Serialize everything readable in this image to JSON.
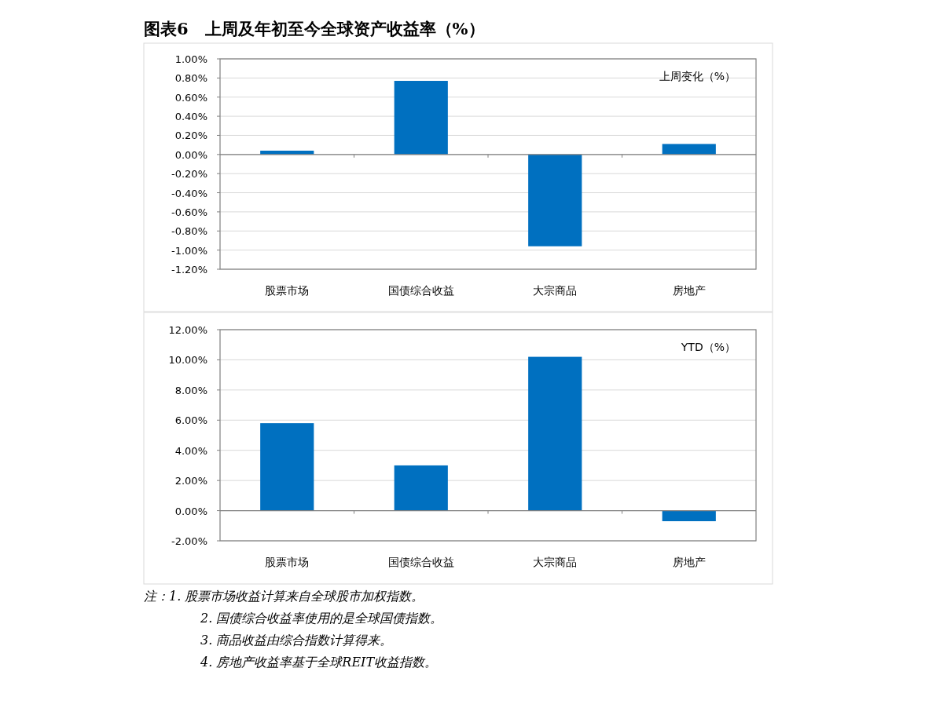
{
  "chart_data": [
    {
      "type": "bar",
      "title": "图表6　上周及年初至今全球资产收益率（%）",
      "categories": [
        "股票市场",
        "国债综合收益",
        "大宗商品",
        "房地产"
      ],
      "values": [
        0.04,
        0.77,
        -0.96,
        0.11
      ],
      "color": "#0070c0",
      "ylim": [
        -1.2,
        1.0
      ],
      "yticks": [
        {
          "value": -1.2,
          "label": "-1.20%"
        },
        {
          "value": -1.0,
          "label": "-1.00%"
        },
        {
          "value": -0.8,
          "label": "-0.80%"
        },
        {
          "value": -0.6,
          "label": "-0.60%"
        },
        {
          "value": -0.4,
          "label": "-0.40%"
        },
        {
          "value": -0.2,
          "label": "-0.20%"
        },
        {
          "value": 0,
          "label": "0.00%"
        },
        {
          "value": 0.2,
          "label": "0.20%"
        },
        {
          "value": 0.4,
          "label": "0.40%"
        },
        {
          "value": 0.6,
          "label": "0.60%"
        },
        {
          "value": 0.8,
          "label": "0.80%"
        },
        {
          "value": 1.0,
          "label": "1.00%"
        }
      ],
      "grid": "y",
      "annotations": [
        "上周变化（%）"
      ]
    },
    {
      "type": "bar",
      "categories": [
        "股票市场",
        "国债综合收益",
        "大宗商品",
        "房地产"
      ],
      "values": [
        5.8,
        3.0,
        10.2,
        -0.7
      ],
      "color": "#0070c0",
      "ylim": [
        -2,
        12
      ],
      "yticks": [
        {
          "value": -2,
          "label": "-2.00%"
        },
        {
          "value": 0,
          "label": "0.00%"
        },
        {
          "value": 2,
          "label": "2.00%"
        },
        {
          "value": 4,
          "label": "4.00%"
        },
        {
          "value": 6,
          "label": "6.00%"
        },
        {
          "value": 8,
          "label": "8.00%"
        },
        {
          "value": 10,
          "label": "10.00%"
        },
        {
          "value": 12,
          "label": "12.00%"
        }
      ],
      "grid": "y",
      "annotations": [
        "YTD（%）",
        "注：1. 股票市场收益计算来自全球股市加权指数。",
        "2. 国债综合收益率使用的是全球国债指数。",
        "3. 商品收益由综合指数计算得来。",
        "4. 房地产收益率基于全球REIT收益指数。"
      ]
    }
  ]
}
